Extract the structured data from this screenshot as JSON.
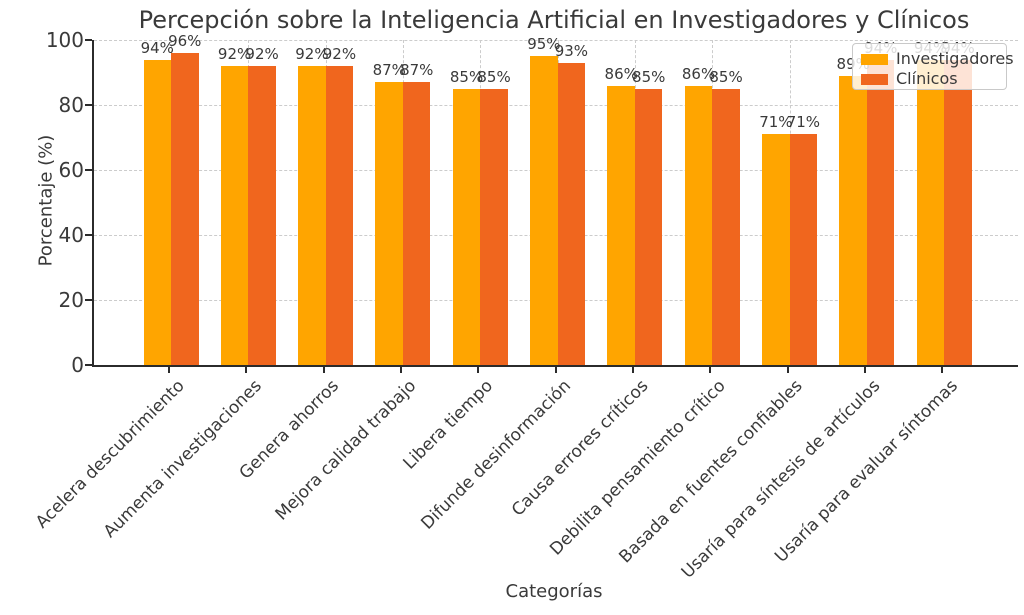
{
  "title": "Percepción sobre la Inteligencia Artificial en Investigadores y Clínicos",
  "colors": {
    "investigadores": "#FFA500",
    "clinicos": "#F0661E",
    "grid": "#CCCCCC",
    "spine": "#2B2B2B",
    "text": "#3A3A3A",
    "legend_background": "rgba(255,255,255,0.82)"
  },
  "legend": {
    "position": "upper right",
    "items": [
      {
        "label": "Investigadores",
        "color": "#FFA500"
      },
      {
        "label": "Clínicos",
        "color": "#F0661E"
      }
    ]
  },
  "chart_data": {
    "type": "bar",
    "title": "Percepción sobre la Inteligencia Artificial en Investigadores y Clínicos",
    "xlabel": "Categorías",
    "ylabel": "Porcentaje (%)",
    "ylim": [
      0,
      100
    ],
    "yticks": [
      0,
      20,
      40,
      60,
      80,
      100
    ],
    "ytick_labels": [
      "0",
      "20",
      "40",
      "60",
      "80",
      "100"
    ],
    "grid": "dashed, horizontal and vertical",
    "legend_position": "upper right",
    "categories": [
      "Acelera descubrimiento",
      "Aumenta investigaciones",
      "Genera ahorros",
      "Mejora calidad trabajo",
      "Libera tiempo",
      "Difunde desinformación",
      "Causa errores críticos",
      "Debilita pensamiento crítico",
      "Basada en fuentes confiables",
      "Usaría para síntesis de artículos",
      "Usaría para evaluar síntomas"
    ],
    "series": [
      {
        "name": "Investigadores",
        "color": "#FFA500",
        "values": [
          94,
          92,
          92,
          87,
          85,
          95,
          86,
          86,
          71,
          89,
          94
        ],
        "labels": [
          "94%",
          "92%",
          "92%",
          "87%",
          "85%",
          "95%",
          "86%",
          "86%",
          "71%",
          "89%",
          "94%"
        ]
      },
      {
        "name": "Clínicos",
        "color": "#F0661E",
        "values": [
          96,
          92,
          92,
          87,
          85,
          93,
          85,
          85,
          71,
          94,
          94
        ],
        "labels": [
          "96%",
          "92%",
          "92%",
          "87%",
          "85%",
          "93%",
          "85%",
          "85%",
          "71%",
          "94%",
          "94%"
        ]
      }
    ]
  }
}
